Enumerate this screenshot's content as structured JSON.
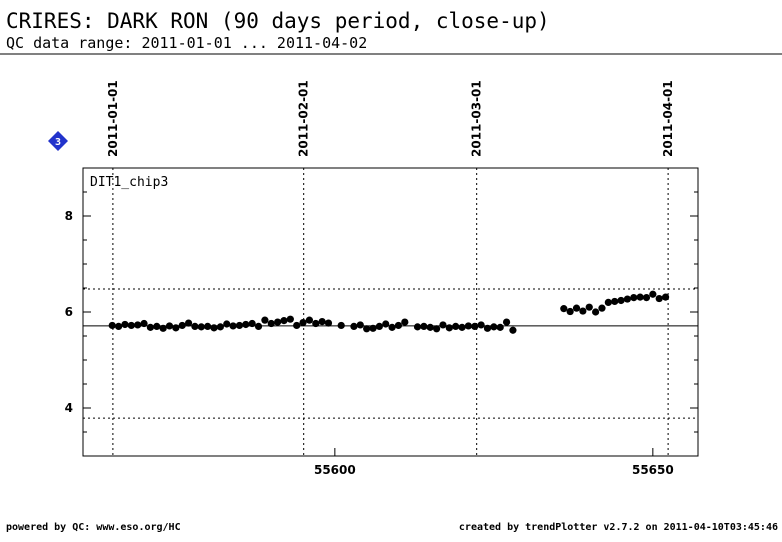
{
  "title": "CRIRES: DARK RON (90 days period, close-up)",
  "subtitle": "QC data range: 2011-01-01 ... 2011-04-02",
  "footer_left": "powered by QC: www.eso.org/HC",
  "footer_right": "created by trendPlotter v2.7.2 on 2011-04-10T03:45:46",
  "badge": "3",
  "chart_data": {
    "type": "scatter",
    "panel_label": "DIT1_chip3",
    "color": "#000000",
    "xlim": [
      55560.4,
      55657.1
    ],
    "xticks": [
      55600,
      55650
    ],
    "ylim": [
      3,
      9
    ],
    "yticks": [
      4,
      6,
      8
    ],
    "yminorticks": [
      3.5,
      4.5,
      5,
      5.5,
      6.5,
      7,
      7.5,
      8.5
    ],
    "date_lines": [
      {
        "value": 55565.1,
        "label": "2011-01-01"
      },
      {
        "value": 55595.1,
        "label": "2011-02-01"
      },
      {
        "value": 55622.3,
        "label": "2011-03-01"
      },
      {
        "value": 55652.4,
        "label": "2011-04-01"
      }
    ],
    "hlines": [
      {
        "value": 5.71,
        "style": "solid"
      },
      {
        "value": 6.48,
        "style": "dotted"
      },
      {
        "value": 3.79,
        "style": "dotted"
      }
    ],
    "x": [
      55565,
      55566,
      55567,
      55568,
      55569,
      55570,
      55571,
      55572,
      55573,
      55574,
      55575,
      55576,
      55577,
      55578,
      55579,
      55580,
      55581,
      55582,
      55583,
      55584,
      55585,
      55586,
      55587,
      55588,
      55589,
      55590,
      55591,
      55592,
      55593,
      55594,
      55595,
      55596,
      55597,
      55598,
      55599,
      55601,
      55603,
      55604,
      55605,
      55606,
      55607,
      55608,
      55609,
      55610,
      55611,
      55613,
      55614,
      55615,
      55616,
      55617,
      55618,
      55619,
      55620,
      55621,
      55622,
      55623,
      55624,
      55625,
      55626,
      55627,
      55628,
      55636,
      55637,
      55638,
      55639,
      55640,
      55641,
      55642,
      55643,
      55644,
      55645,
      55646,
      55647,
      55648,
      55649,
      55650,
      55651,
      55652
    ],
    "values": [
      5.72,
      5.7,
      5.74,
      5.72,
      5.73,
      5.76,
      5.68,
      5.7,
      5.66,
      5.71,
      5.67,
      5.72,
      5.77,
      5.7,
      5.69,
      5.7,
      5.67,
      5.69,
      5.75,
      5.71,
      5.72,
      5.74,
      5.76,
      5.7,
      5.83,
      5.76,
      5.79,
      5.82,
      5.85,
      5.72,
      5.78,
      5.83,
      5.76,
      5.8,
      5.77,
      5.72,
      5.7,
      5.73,
      5.65,
      5.66,
      5.7,
      5.75,
      5.68,
      5.72,
      5.79,
      5.69,
      5.7,
      5.68,
      5.65,
      5.73,
      5.67,
      5.7,
      5.68,
      5.71,
      5.7,
      5.73,
      5.66,
      5.69,
      5.68,
      5.79,
      5.62,
      6.07,
      6.01,
      6.08,
      6.02,
      6.1,
      6.0,
      6.08,
      6.2,
      6.22,
      6.24,
      6.27,
      6.3,
      6.31,
      6.3,
      6.37,
      6.28,
      6.31
    ]
  }
}
